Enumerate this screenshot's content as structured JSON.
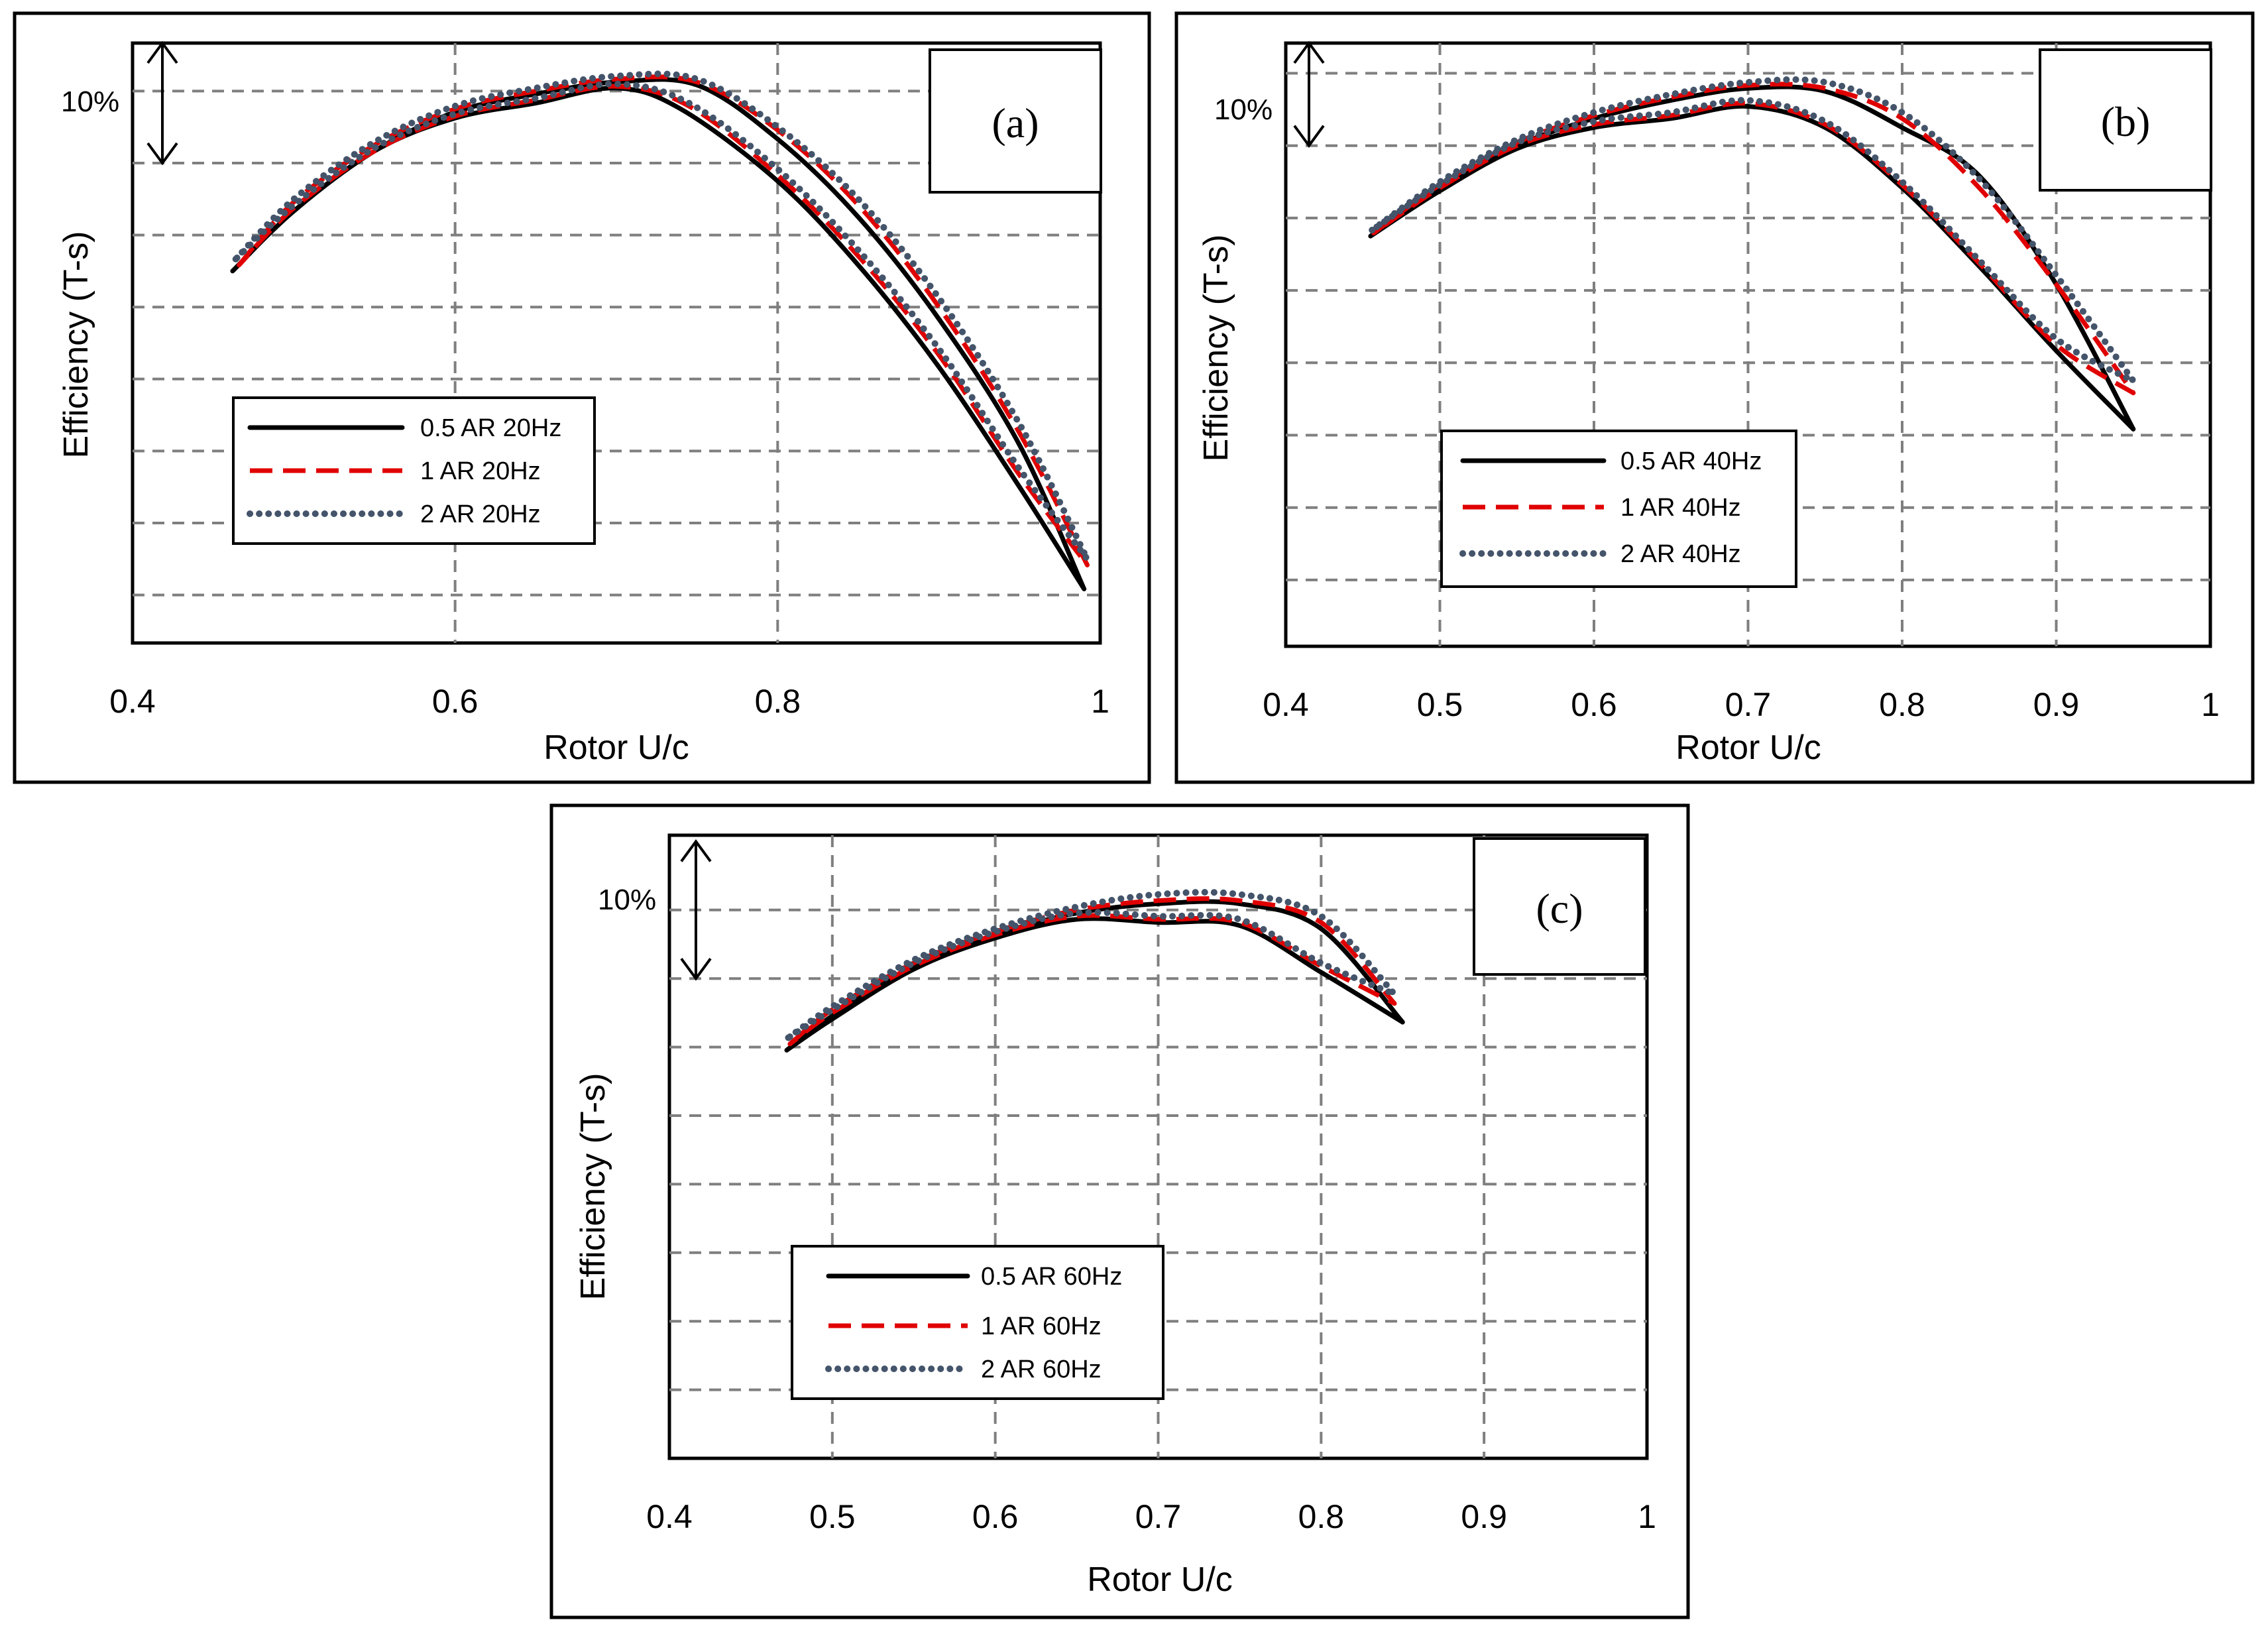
{
  "chart_data": [
    {
      "type": "line",
      "panel_label": "(a)",
      "xlabel": "Rotor U/c",
      "ylabel": "Efficiency (T-s)",
      "xlim": [
        0.4,
        1.0
      ],
      "xticks": [
        "0.4",
        "0.6",
        "0.8",
        "1"
      ],
      "x_grid": [
        0.6,
        0.8
      ],
      "ylim": [
        0,
        1
      ],
      "y_grid": [
        0.08,
        0.2,
        0.32,
        0.44,
        0.56,
        0.68,
        0.8,
        0.92
      ],
      "scale_bar": {
        "label": "10%",
        "from": 0.8,
        "to": 1.0
      },
      "legend_position": "lower-left",
      "series": [
        {
          "name": "0.5 AR 20Hz",
          "color": "#000000",
          "style": "solid",
          "upper": [
            [
              0.462,
              0.62
            ],
            [
              0.5,
              0.72
            ],
            [
              0.55,
              0.82
            ],
            [
              0.6,
              0.885
            ],
            [
              0.65,
              0.915
            ],
            [
              0.7,
              0.935
            ],
            [
              0.75,
              0.93
            ],
            [
              0.8,
              0.84
            ],
            [
              0.85,
              0.71
            ],
            [
              0.9,
              0.54
            ],
            [
              0.95,
              0.33
            ],
            [
              0.99,
              0.09
            ]
          ],
          "lower": [
            [
              0.462,
              0.62
            ],
            [
              0.5,
              0.72
            ],
            [
              0.55,
              0.82
            ],
            [
              0.6,
              0.875
            ],
            [
              0.65,
              0.9
            ],
            [
              0.7,
              0.925
            ],
            [
              0.74,
              0.89
            ],
            [
              0.8,
              0.77
            ],
            [
              0.85,
              0.63
            ],
            [
              0.9,
              0.46
            ],
            [
              0.95,
              0.26
            ],
            [
              0.99,
              0.09
            ]
          ]
        },
        {
          "name": "1 AR 20Hz",
          "color": "#e00000",
          "style": "dashed",
          "upper": [
            [
              0.466,
              0.63
            ],
            [
              0.5,
              0.735
            ],
            [
              0.55,
              0.83
            ],
            [
              0.6,
              0.89
            ],
            [
              0.65,
              0.92
            ],
            [
              0.7,
              0.94
            ],
            [
              0.75,
              0.935
            ],
            [
              0.8,
              0.855
            ],
            [
              0.85,
              0.73
            ],
            [
              0.9,
              0.56
            ],
            [
              0.95,
              0.35
            ],
            [
              0.992,
              0.13
            ]
          ],
          "lower": [
            [
              0.466,
              0.63
            ],
            [
              0.5,
              0.725
            ],
            [
              0.55,
              0.82
            ],
            [
              0.6,
              0.878
            ],
            [
              0.65,
              0.905
            ],
            [
              0.7,
              0.928
            ],
            [
              0.745,
              0.895
            ],
            [
              0.8,
              0.78
            ],
            [
              0.85,
              0.645
            ],
            [
              0.9,
              0.48
            ],
            [
              0.95,
              0.28
            ],
            [
              0.992,
              0.13
            ]
          ]
        },
        {
          "name": "2 AR 20Hz",
          "color": "#44546a",
          "style": "dotted",
          "upper": [
            [
              0.464,
              0.64
            ],
            [
              0.5,
              0.74
            ],
            [
              0.55,
              0.835
            ],
            [
              0.6,
              0.895
            ],
            [
              0.65,
              0.925
            ],
            [
              0.7,
              0.945
            ],
            [
              0.75,
              0.94
            ],
            [
              0.8,
              0.86
            ],
            [
              0.85,
              0.74
            ],
            [
              0.9,
              0.575
            ],
            [
              0.95,
              0.365
            ],
            [
              0.992,
              0.14
            ]
          ],
          "lower": [
            [
              0.464,
              0.64
            ],
            [
              0.5,
              0.73
            ],
            [
              0.55,
              0.825
            ],
            [
              0.6,
              0.882
            ],
            [
              0.65,
              0.908
            ],
            [
              0.7,
              0.932
            ],
            [
              0.745,
              0.9
            ],
            [
              0.8,
              0.79
            ],
            [
              0.85,
              0.655
            ],
            [
              0.9,
              0.49
            ],
            [
              0.95,
              0.29
            ],
            [
              0.992,
              0.14
            ]
          ]
        }
      ]
    },
    {
      "type": "line",
      "panel_label": "(b)",
      "xlabel": "Rotor U/c",
      "ylabel": "Efficiency (T-s)",
      "xlim": [
        0.4,
        1.0
      ],
      "xticks": [
        "0.4",
        "0.5",
        "0.6",
        "0.7",
        "0.8",
        "0.9",
        "1"
      ],
      "x_grid": [
        0.5,
        0.6,
        0.7,
        0.8,
        0.9
      ],
      "ylim": [
        0,
        1
      ],
      "y_grid": [
        0.11,
        0.23,
        0.35,
        0.47,
        0.59,
        0.71,
        0.83,
        0.95
      ],
      "scale_bar": {
        "label": "10%",
        "from": 0.83,
        "to": 1.0
      },
      "legend_position": "lower-left",
      "series": [
        {
          "name": "0.5 AR 40Hz",
          "color": "#000000",
          "style": "solid",
          "upper": [
            [
              0.455,
              0.68
            ],
            [
              0.5,
              0.76
            ],
            [
              0.55,
              0.83
            ],
            [
              0.6,
              0.875
            ],
            [
              0.65,
              0.905
            ],
            [
              0.7,
              0.925
            ],
            [
              0.75,
              0.92
            ],
            [
              0.8,
              0.86
            ],
            [
              0.85,
              0.78
            ],
            [
              0.9,
              0.6
            ],
            [
              0.95,
              0.36
            ]
          ],
          "lower": [
            [
              0.455,
              0.68
            ],
            [
              0.5,
              0.755
            ],
            [
              0.55,
              0.825
            ],
            [
              0.6,
              0.86
            ],
            [
              0.65,
              0.875
            ],
            [
              0.7,
              0.895
            ],
            [
              0.75,
              0.86
            ],
            [
              0.8,
              0.76
            ],
            [
              0.85,
              0.63
            ],
            [
              0.9,
              0.49
            ],
            [
              0.95,
              0.36
            ]
          ]
        },
        {
          "name": "1 AR 40Hz",
          "color": "#e00000",
          "style": "dashed",
          "upper": [
            [
              0.457,
              0.685
            ],
            [
              0.5,
              0.765
            ],
            [
              0.55,
              0.835
            ],
            [
              0.6,
              0.88
            ],
            [
              0.65,
              0.91
            ],
            [
              0.7,
              0.93
            ],
            [
              0.75,
              0.925
            ],
            [
              0.8,
              0.875
            ],
            [
              0.85,
              0.76
            ],
            [
              0.9,
              0.6
            ],
            [
              0.95,
              0.42
            ]
          ],
          "lower": [
            [
              0.457,
              0.685
            ],
            [
              0.5,
              0.76
            ],
            [
              0.55,
              0.83
            ],
            [
              0.6,
              0.865
            ],
            [
              0.65,
              0.88
            ],
            [
              0.7,
              0.9
            ],
            [
              0.75,
              0.865
            ],
            [
              0.8,
              0.765
            ],
            [
              0.85,
              0.635
            ],
            [
              0.9,
              0.5
            ],
            [
              0.95,
              0.42
            ]
          ]
        },
        {
          "name": "2 AR 40Hz",
          "color": "#44546a",
          "style": "dotted",
          "upper": [
            [
              0.456,
              0.69
            ],
            [
              0.5,
              0.77
            ],
            [
              0.55,
              0.84
            ],
            [
              0.6,
              0.885
            ],
            [
              0.65,
              0.915
            ],
            [
              0.7,
              0.935
            ],
            [
              0.75,
              0.935
            ],
            [
              0.8,
              0.885
            ],
            [
              0.85,
              0.775
            ],
            [
              0.9,
              0.615
            ],
            [
              0.95,
              0.44
            ]
          ],
          "lower": [
            [
              0.456,
              0.69
            ],
            [
              0.5,
              0.765
            ],
            [
              0.55,
              0.835
            ],
            [
              0.6,
              0.87
            ],
            [
              0.65,
              0.885
            ],
            [
              0.7,
              0.905
            ],
            [
              0.75,
              0.87
            ],
            [
              0.8,
              0.77
            ],
            [
              0.85,
              0.64
            ],
            [
              0.9,
              0.51
            ],
            [
              0.95,
              0.44
            ]
          ]
        }
      ]
    },
    {
      "type": "line",
      "panel_label": "(c)",
      "xlabel": "Rotor U/c",
      "ylabel": "Efficiency (T-s)",
      "xlim": [
        0.4,
        1.0
      ],
      "xticks": [
        "0.4",
        "0.5",
        "0.6",
        "0.7",
        "0.8",
        "0.9",
        "1"
      ],
      "x_grid": [
        0.5,
        0.6,
        0.7,
        0.8,
        0.9
      ],
      "ylim": [
        0,
        1
      ],
      "y_grid": [
        0.11,
        0.22,
        0.33,
        0.44,
        0.55,
        0.66,
        0.77,
        0.88
      ],
      "scale_bar": {
        "label": "10%",
        "from": 0.77,
        "to": 0.99
      },
      "legend_position": "lower-left",
      "series": [
        {
          "name": "0.5 AR 60Hz",
          "color": "#000000",
          "style": "solid",
          "upper": [
            [
              0.472,
              0.655
            ],
            [
              0.5,
              0.71
            ],
            [
              0.55,
              0.79
            ],
            [
              0.6,
              0.84
            ],
            [
              0.65,
              0.875
            ],
            [
              0.7,
              0.89
            ],
            [
              0.75,
              0.89
            ],
            [
              0.8,
              0.85
            ],
            [
              0.85,
              0.7
            ]
          ],
          "lower": [
            [
              0.472,
              0.655
            ],
            [
              0.5,
              0.705
            ],
            [
              0.55,
              0.785
            ],
            [
              0.6,
              0.835
            ],
            [
              0.65,
              0.865
            ],
            [
              0.7,
              0.86
            ],
            [
              0.75,
              0.855
            ],
            [
              0.8,
              0.78
            ],
            [
              0.85,
              0.7
            ]
          ]
        },
        {
          "name": "1 AR 60Hz",
          "color": "#e00000",
          "style": "dashed",
          "upper": [
            [
              0.474,
              0.665
            ],
            [
              0.5,
              0.72
            ],
            [
              0.55,
              0.795
            ],
            [
              0.6,
              0.845
            ],
            [
              0.65,
              0.88
            ],
            [
              0.7,
              0.895
            ],
            [
              0.75,
              0.895
            ],
            [
              0.8,
              0.86
            ],
            [
              0.845,
              0.73
            ]
          ],
          "lower": [
            [
              0.474,
              0.665
            ],
            [
              0.5,
              0.715
            ],
            [
              0.55,
              0.79
            ],
            [
              0.6,
              0.84
            ],
            [
              0.65,
              0.87
            ],
            [
              0.7,
              0.865
            ],
            [
              0.75,
              0.86
            ],
            [
              0.8,
              0.79
            ],
            [
              0.845,
              0.73
            ]
          ]
        },
        {
          "name": "2 AR 60Hz",
          "color": "#44546a",
          "style": "dotted",
          "upper": [
            [
              0.473,
              0.675
            ],
            [
              0.5,
              0.725
            ],
            [
              0.55,
              0.8
            ],
            [
              0.6,
              0.85
            ],
            [
              0.65,
              0.885
            ],
            [
              0.7,
              0.905
            ],
            [
              0.75,
              0.905
            ],
            [
              0.8,
              0.87
            ],
            [
              0.845,
              0.745
            ]
          ],
          "lower": [
            [
              0.473,
              0.675
            ],
            [
              0.5,
              0.72
            ],
            [
              0.55,
              0.795
            ],
            [
              0.6,
              0.845
            ],
            [
              0.65,
              0.875
            ],
            [
              0.7,
              0.87
            ],
            [
              0.75,
              0.865
            ],
            [
              0.8,
              0.795
            ],
            [
              0.845,
              0.745
            ]
          ]
        }
      ]
    }
  ]
}
